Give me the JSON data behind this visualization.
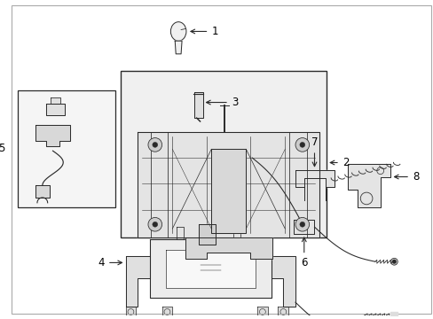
{
  "background_color": "#ffffff",
  "line_color": "#2a2a2a",
  "label_color": "#000000",
  "fill_light": "#e8e8e8",
  "fill_box": "#ebebeb",
  "font_size": 8.5,
  "lw": 0.7
}
